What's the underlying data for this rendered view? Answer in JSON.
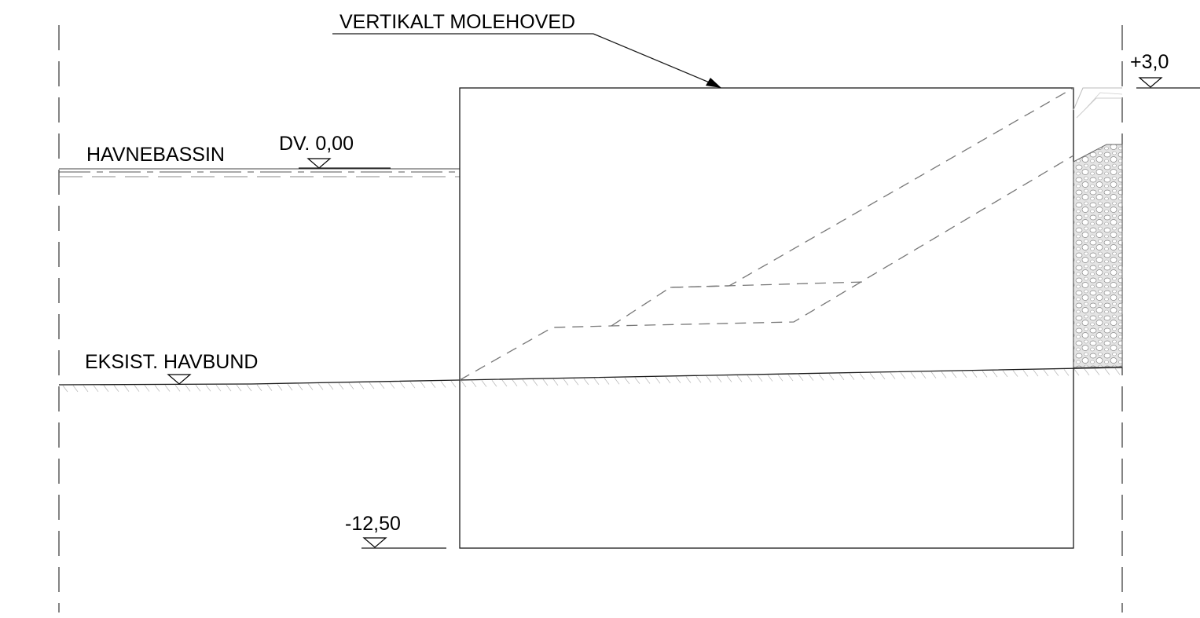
{
  "labels": {
    "title": "VERTIKALT MOLEHOVED",
    "harbour_basin": "HAVNEBASSIN",
    "datum": "DV. 0,00",
    "seabed": "EKSIST. HAVBUND",
    "bottom_level": "-12,50",
    "top_level": "+3,0"
  },
  "colors": {
    "line": "#1a1a1a",
    "dashed": "#777777",
    "hatch": "#bbbbbb",
    "stone_fill": "#e4e4e4"
  }
}
